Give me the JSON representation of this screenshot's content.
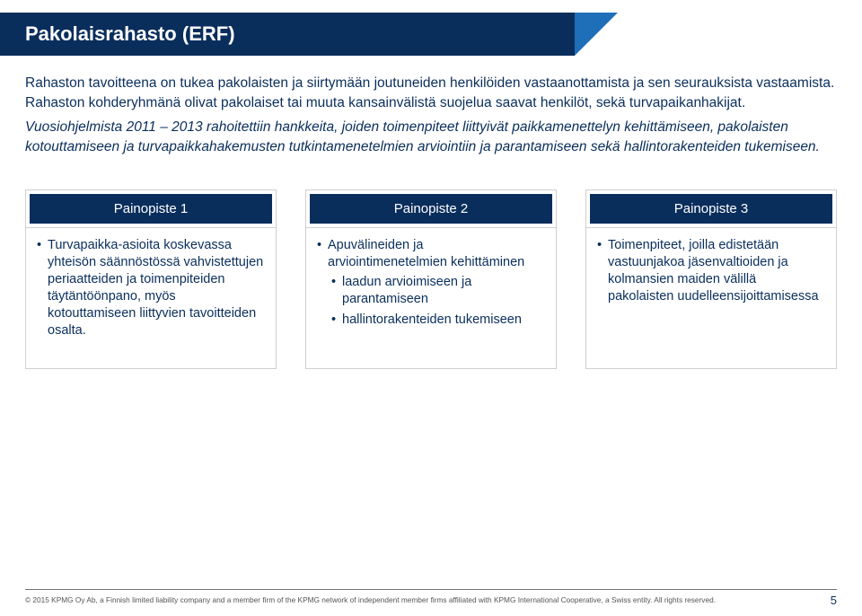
{
  "title": "Pakolaisrahasto (ERF)",
  "intro": {
    "p1": "Rahaston tavoitteena on tukea pakolaisten ja siirtymään joutuneiden henkilöiden vastaanottamista ja sen seurauksista vastaamista. Rahaston kohderyhmänä olivat pakolaiset tai muuta kansainvälistä suojelua saavat henkilöt, sekä turvapaikanhakijat.",
    "p2": "Vuosiohjelmista 2011 – 2013 rahoitettiin hankkeita, joiden toimenpiteet liittyivät paikkamenettelyn kehittämiseen, pakolaisten kotouttamiseen ja turvapaikkahakemusten tutkintamenetelmien arviointiin ja parantamiseen sekä hallintorakenteiden tukemiseen."
  },
  "columns": [
    {
      "header": "Painopiste 1",
      "items": [
        "Turvapaikka-asioita koskevassa yhteisön säännöstössä vahvistettujen periaatteiden ja toimenpiteiden täytäntöönpano, myös kotouttamiseen liittyvien tavoitteiden osalta."
      ]
    },
    {
      "header": "Painopiste 2",
      "items": [
        "Apuvälineiden ja arviointimenetelmien kehittäminen",
        {
          "sub": [
            "laadun arvioimiseen ja parantamiseen",
            "hallintorakenteiden tukemiseen"
          ]
        }
      ]
    },
    {
      "header": "Painopiste 3",
      "items": [
        "Toimenpiteet, joilla edistetään vastuunjakoa jäsenvaltioiden ja kolmansien maiden välillä pakolaisten uudelleensijoittamisessa"
      ]
    }
  ],
  "footer": "© 2015 KPMG Oy Ab, a Finnish limited liability company and a member firm of the KPMG network of independent member firms affiliated with KPMG International Cooperative, a Swiss entity. All rights reserved.",
  "page_number": "5",
  "colors": {
    "brand_dark": "#0a2e5c",
    "brand_accent": "#1e6fb8",
    "border": "#cfcfcf",
    "text_body": "#0a2e5c",
    "footer_text": "#555555",
    "footer_rule": "#747474",
    "background": "#ffffff"
  },
  "fonts": {
    "title_pt": 22,
    "body_pt": 15.5,
    "col_header_pt": 15,
    "col_body_pt": 14.5,
    "footer_pt": 8.3,
    "pagenum_pt": 13
  }
}
